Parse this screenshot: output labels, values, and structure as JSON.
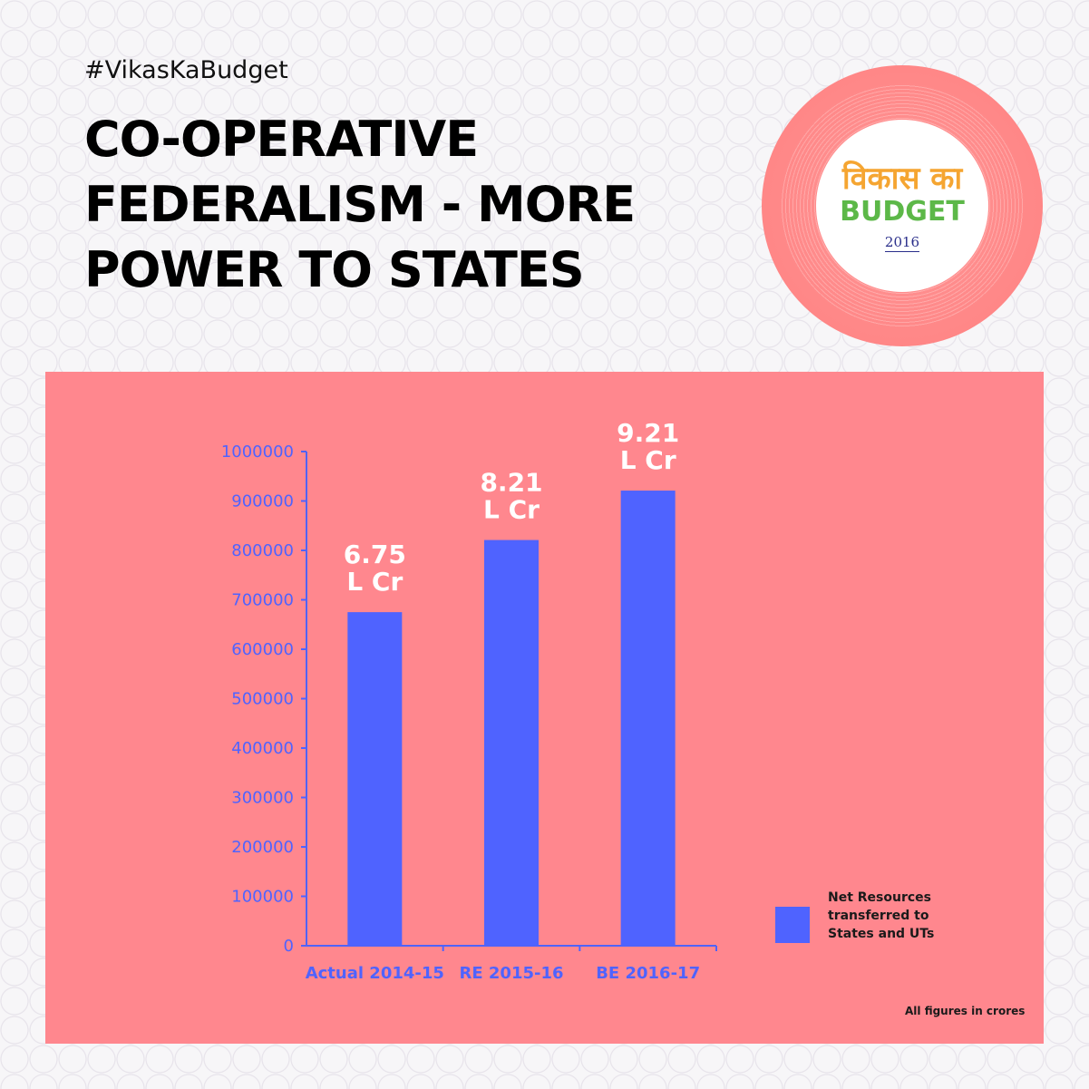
{
  "hashtag": "#VikasKaBudget",
  "title": "CO-OPERATIVE FEDERALISM - MORE POWER TO STATES",
  "badge": {
    "hindi": "विकास का",
    "word": "BUDGET",
    "year": "2016"
  },
  "chart_data": {
    "type": "bar",
    "categories": [
      "Actual 2014-15",
      "RE 2015-16",
      "BE 2016-17"
    ],
    "series": [
      {
        "name": "Net Resources transferred to States and UTs",
        "values": [
          675000,
          821000,
          921000
        ],
        "labels": [
          "6.75 L Cr",
          "8.21 L Cr",
          "9.21 L Cr"
        ]
      }
    ],
    "yticks": [
      "0",
      "100000",
      "200000",
      "300000",
      "400000",
      "500000",
      "600000",
      "700000",
      "800000",
      "900000",
      "1000000"
    ],
    "ylim": [
      0,
      1000000
    ],
    "legend_position": "bottom-right",
    "note": "All figures in crores",
    "colors": {
      "bar": "#4f63ff",
      "axis": "#4f63ff",
      "panel": "#ff878e",
      "label": "#ffffff"
    }
  }
}
